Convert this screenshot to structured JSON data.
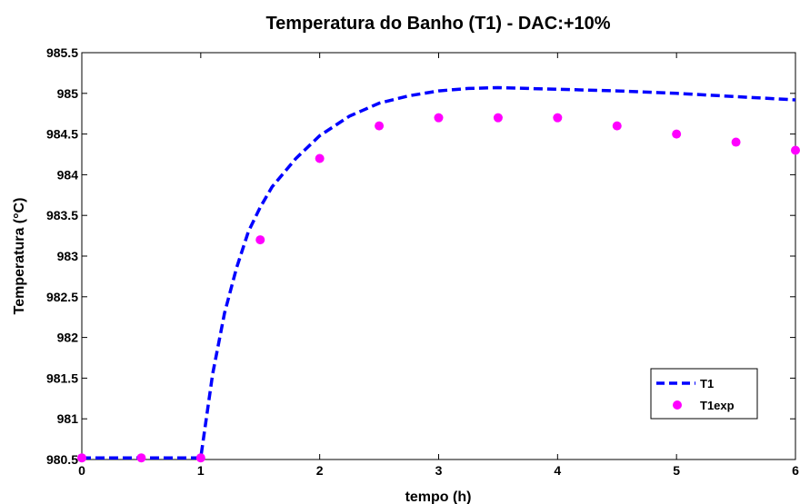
{
  "chart_data": {
    "type": "line",
    "title": "Temperatura do Banho (T1) - DAC:+10%",
    "xlabel": "tempo (h)",
    "ylabel": "Temperatura (°C)",
    "xlim": [
      0,
      6
    ],
    "ylim": [
      980.5,
      985.5
    ],
    "xticks": [
      "0",
      "1",
      "2",
      "3",
      "4",
      "5",
      "6"
    ],
    "yticks": [
      "980.5",
      "981",
      "981.5",
      "982",
      "982.5",
      "983",
      "983.5",
      "984",
      "984.5",
      "985",
      "985.5"
    ],
    "grid": false,
    "legend_position": "bottom-right",
    "series": [
      {
        "name": "T1",
        "style": "dashed-line",
        "color": "#0000ff",
        "x": [
          0,
          0.5,
          1.0,
          1.1,
          1.2,
          1.3,
          1.4,
          1.5,
          1.6,
          1.8,
          2.0,
          2.25,
          2.5,
          2.75,
          3.0,
          3.25,
          3.5,
          3.75,
          4.0,
          4.5,
          5.0,
          5.5,
          6.0
        ],
        "y": [
          980.52,
          980.52,
          980.52,
          981.55,
          982.3,
          982.85,
          983.3,
          983.6,
          983.85,
          984.2,
          984.48,
          984.72,
          984.88,
          984.97,
          985.03,
          985.06,
          985.07,
          985.06,
          985.05,
          985.03,
          985.0,
          984.96,
          984.92
        ]
      },
      {
        "name": "T1exp",
        "style": "markers",
        "color": "#ff00ff",
        "x": [
          0,
          0.5,
          1.0,
          1.5,
          2.0,
          2.5,
          3.0,
          3.5,
          4.0,
          4.5,
          5.0,
          5.5,
          6.0
        ],
        "y": [
          980.52,
          980.52,
          980.52,
          983.2,
          984.2,
          984.6,
          984.7,
          984.7,
          984.7,
          984.6,
          984.5,
          984.4,
          984.3
        ]
      }
    ]
  }
}
